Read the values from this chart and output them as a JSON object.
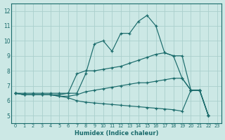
{
  "xlabel": "Humidex (Indice chaleur)",
  "bg_color": "#cce8e5",
  "grid_color": "#aacfcc",
  "line_color": "#1a6b6b",
  "xticks": [
    0,
    1,
    2,
    3,
    4,
    5,
    6,
    7,
    8,
    9,
    10,
    11,
    12,
    13,
    14,
    15,
    16,
    17,
    18,
    19,
    20,
    21,
    22,
    23
  ],
  "yticks": [
    5,
    6,
    7,
    8,
    9,
    10,
    11,
    12
  ],
  "xlim": [
    -0.5,
    23.5
  ],
  "ylim": [
    4.5,
    12.5
  ],
  "lines": [
    {
      "x": [
        0,
        1,
        2,
        3,
        4,
        5,
        6,
        7,
        8,
        9,
        10,
        11,
        12,
        13,
        14,
        15,
        16,
        17,
        18,
        19,
        20,
        21,
        22
      ],
      "y": [
        6.5,
        6.5,
        6.5,
        6.5,
        6.5,
        6.5,
        6.5,
        6.5,
        7.8,
        9.8,
        10.0,
        9.3,
        10.5,
        10.5,
        11.3,
        11.7,
        11.0,
        9.2,
        9.0,
        7.5,
        6.7,
        6.7,
        5.0
      ]
    },
    {
      "x": [
        0,
        1,
        2,
        3,
        4,
        5,
        6,
        7,
        8,
        9,
        10,
        11,
        12,
        13,
        14,
        15,
        16,
        17,
        18,
        19,
        20,
        21,
        22
      ],
      "y": [
        6.5,
        6.4,
        6.4,
        6.4,
        6.4,
        6.4,
        6.5,
        7.8,
        8.0,
        8.0,
        8.1,
        8.2,
        8.3,
        8.5,
        8.7,
        8.9,
        9.1,
        9.2,
        9.0,
        9.0,
        6.7,
        6.7,
        5.0
      ]
    },
    {
      "x": [
        0,
        1,
        2,
        3,
        4,
        5,
        6,
        7,
        8,
        9,
        10,
        11,
        12,
        13,
        14,
        15,
        16,
        17,
        18,
        19,
        20,
        21,
        22
      ],
      "y": [
        6.5,
        6.4,
        6.4,
        6.4,
        6.4,
        6.3,
        6.3,
        6.4,
        6.6,
        6.7,
        6.8,
        6.9,
        7.0,
        7.1,
        7.2,
        7.2,
        7.3,
        7.4,
        7.5,
        7.5,
        6.7,
        6.7,
        5.0
      ]
    },
    {
      "x": [
        0,
        1,
        2,
        3,
        4,
        5,
        6,
        7,
        8,
        9,
        10,
        11,
        12,
        13,
        14,
        15,
        16,
        17,
        18,
        19,
        20,
        21,
        22
      ],
      "y": [
        6.5,
        6.4,
        6.4,
        6.4,
        6.4,
        6.3,
        6.2,
        6.0,
        5.9,
        5.85,
        5.8,
        5.75,
        5.7,
        5.65,
        5.6,
        5.55,
        5.5,
        5.45,
        5.4,
        5.3,
        6.7,
        6.7,
        5.0
      ]
    }
  ]
}
